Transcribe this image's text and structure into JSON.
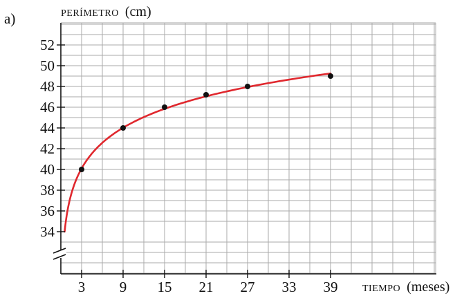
{
  "panel_label": "a)",
  "chart_data": {
    "type": "scatter",
    "title": "",
    "ylabel": {
      "main": "PERÍMETRO",
      "unit": "(cm)"
    },
    "xlabel": {
      "main": "TIEMPO",
      "unit": "(meses)"
    },
    "x_ticks": [
      "3",
      "9",
      "15",
      "21",
      "27",
      "33",
      "39"
    ],
    "y_ticks": [
      "34",
      "36",
      "38",
      "40",
      "42",
      "44",
      "46",
      "48",
      "50",
      "52"
    ],
    "xlim": [
      0,
      54
    ],
    "ylim": [
      34,
      54
    ],
    "y_axis_break": true,
    "grid": true,
    "points": [
      {
        "x": 3,
        "y": 40
      },
      {
        "x": 9,
        "y": 44
      },
      {
        "x": 15,
        "y": 46
      },
      {
        "x": 21,
        "y": 47.2
      },
      {
        "x": 27,
        "y": 48
      },
      {
        "x": 39,
        "y": 49
      }
    ],
    "curve_color": "#e0282e",
    "point_color": "#111111",
    "grid_color": "#aaaaaa"
  }
}
